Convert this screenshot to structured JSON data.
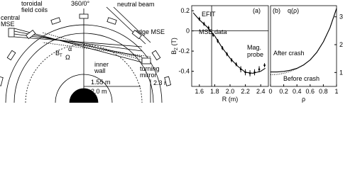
{
  "diagram": {
    "labels": {
      "coils": [
        "toroidal",
        "field coils"
      ],
      "angle": "360/0°",
      "beam": "neutral beam",
      "central": [
        "central",
        "MSE"
      ],
      "edge": "edge MSE",
      "mirror": [
        "turning",
        "mirror"
      ],
      "bt_base": "B",
      "bt_sub": "T",
      "alpha": "α",
      "omega": "Ω",
      "wall": [
        "inner",
        "wall"
      ],
      "r1": "2.3 m",
      "r2": "1.55 m",
      "r3": "2.0 m"
    }
  },
  "chart_data": [
    {
      "type": "scatter",
      "panel": "(a)",
      "ylabel": "B",
      "ylabel_sub": "Z",
      "ylabel_unit": "(T)",
      "xlabel": "R (m)",
      "xlim": [
        1.5,
        2.5
      ],
      "ylim": [
        -0.55,
        0.25
      ],
      "xticks": [
        1.6,
        1.8,
        {
          "value": 2,
          "label": "2.0"
        },
        2.2,
        2.4
      ],
      "yticks": [
        0.2,
        0,
        -0.2,
        -0.4
      ],
      "vline": 1.76,
      "hline": 0,
      "annotations": [
        "EFIT",
        "MSE data",
        [
          "Mag.",
          "probe"
        ]
      ],
      "series": [
        {
          "name": "EFIT",
          "style": "line",
          "color": "#000000",
          "x": [
            1.52,
            1.6,
            1.7,
            1.8,
            1.9,
            2.0,
            2.1,
            2.2,
            2.3,
            2.4,
            2.46
          ],
          "values": [
            0.18,
            0.11,
            0.04,
            -0.05,
            -0.17,
            -0.27,
            -0.35,
            -0.41,
            -0.42,
            -0.4,
            -0.37
          ]
        },
        {
          "name": "MSE data",
          "style": "points",
          "color": "#000000",
          "x": [
            1.6,
            1.66,
            1.72,
            1.78,
            1.84,
            1.9,
            1.96,
            2.02,
            2.08,
            2.14,
            2.2,
            2.26,
            2.32,
            2.38
          ],
          "values": [
            0.12,
            0.07,
            0.03,
            -0.04,
            -0.1,
            -0.17,
            -0.23,
            -0.29,
            -0.33,
            -0.38,
            -0.41,
            -0.42,
            -0.41,
            -0.38
          ],
          "errors": [
            0.02,
            0.02,
            0.02,
            0.02,
            0.02,
            0.02,
            0.02,
            0.02,
            0.02,
            0.03,
            0.03,
            0.03,
            0.03,
            0.03
          ]
        },
        {
          "name": "Mag. probe",
          "style": "points",
          "color": "#000000",
          "x": [
            2.45
          ],
          "values": [
            -0.34
          ],
          "errors": [
            0.02
          ]
        }
      ]
    },
    {
      "type": "line",
      "panel": "(b)",
      "ylabel": "q(ρ)",
      "xlabel": "ρ",
      "xlim": [
        0,
        1
      ],
      "ylim": [
        0.5,
        3.4
      ],
      "xticks": [
        0,
        0.2,
        0.4,
        0.6,
        0.8,
        1
      ],
      "yticks": [
        1,
        2,
        3
      ],
      "series": [
        {
          "name": "After crash",
          "style": "line",
          "color": "#000000",
          "x": [
            0,
            0.1,
            0.2,
            0.3,
            0.4,
            0.5,
            0.6,
            0.7,
            0.8,
            0.9,
            1
          ],
          "values": [
            1.02,
            1.02,
            1.04,
            1.08,
            1.15,
            1.27,
            1.45,
            1.72,
            2.1,
            2.6,
            3.3
          ]
        },
        {
          "name": "Before crash",
          "style": "dotted",
          "color": "#000000",
          "x": [
            0,
            0.1,
            0.2,
            0.3,
            0.4,
            0.5,
            0.6,
            0.7,
            0.8,
            0.9,
            1
          ],
          "values": [
            0.92,
            0.93,
            0.97,
            1.04,
            1.14,
            1.27,
            1.45,
            1.72,
            2.1,
            2.6,
            3.3
          ]
        }
      ]
    }
  ]
}
